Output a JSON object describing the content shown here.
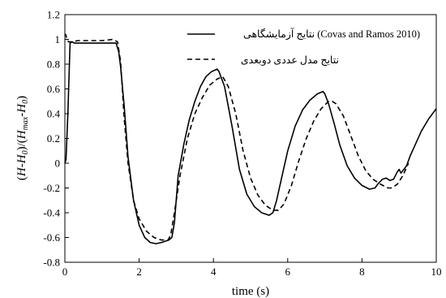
{
  "chart_data": {
    "type": "line",
    "title": "",
    "xlabel": "time (s)",
    "ylabel": "(H-H0)/(Hmax-H0)",
    "ylabel_parts": {
      "open": "(",
      "h": "H",
      "minus1": "-",
      "h0": "H",
      "sub0": "0",
      "close_div": ")/(",
      "hmax": "H",
      "submax": "max",
      "minus2": "-",
      "h0b": "H",
      "sub0b": "0",
      "close": ")"
    },
    "xlim": [
      0,
      10
    ],
    "ylim": [
      -0.8,
      1.2
    ],
    "xticks": [
      "0",
      "2",
      "4",
      "6",
      "8",
      "10"
    ],
    "yticks": [
      "1.2",
      "1",
      "0.8",
      "0.6",
      "0.4",
      "0.2",
      "0",
      "-0.2",
      "-0.4",
      "-0.6",
      "-0.8"
    ],
    "grid": false,
    "legend_position": "top-right",
    "series": [
      {
        "name": "نتایج آزمایشگاهی (Covas and Ramos 2010)",
        "style": "solid",
        "color": "#000000",
        "x": [
          0,
          0.03,
          0.08,
          0.14,
          0.2,
          0.25,
          0.3,
          0.5,
          1.0,
          1.38,
          1.45,
          1.5,
          1.6,
          1.7,
          1.85,
          2.0,
          2.15,
          2.3,
          2.45,
          2.6,
          2.8,
          2.88,
          2.95,
          3.05,
          3.2,
          3.35,
          3.5,
          3.65,
          3.8,
          3.95,
          4.1,
          4.15,
          4.3,
          4.5,
          4.7,
          4.9,
          5.1,
          5.3,
          5.5,
          5.6,
          5.7,
          5.85,
          6.0,
          6.2,
          6.4,
          6.6,
          6.8,
          6.95,
          7.0,
          7.1,
          7.25,
          7.4,
          7.6,
          7.8,
          8.0,
          8.2,
          8.35,
          8.45,
          8.55,
          8.65,
          8.75,
          8.85,
          8.95,
          9.0,
          9.05,
          9.1,
          9.2,
          9.3,
          9.45,
          9.6,
          9.8,
          10.0
        ],
        "y": [
          0.0,
          0.03,
          0.4,
          0.97,
          0.98,
          0.97,
          0.97,
          0.97,
          0.97,
          0.97,
          0.9,
          0.78,
          0.45,
          0.05,
          -0.3,
          -0.5,
          -0.6,
          -0.64,
          -0.65,
          -0.64,
          -0.62,
          -0.6,
          -0.48,
          -0.1,
          0.15,
          0.35,
          0.5,
          0.62,
          0.7,
          0.74,
          0.76,
          0.74,
          0.62,
          0.3,
          -0.05,
          -0.25,
          -0.35,
          -0.4,
          -0.42,
          -0.4,
          -0.3,
          -0.1,
          0.1,
          0.3,
          0.43,
          0.51,
          0.56,
          0.58,
          0.56,
          0.48,
          0.32,
          0.15,
          -0.02,
          -0.12,
          -0.18,
          -0.21,
          -0.2,
          -0.16,
          -0.13,
          -0.12,
          -0.14,
          -0.13,
          -0.07,
          -0.05,
          -0.08,
          -0.06,
          -0.02,
          0.06,
          0.16,
          0.26,
          0.36,
          0.44
        ]
      },
      {
        "name": "نتایج مدل عددی دوبعدی",
        "style": "dashed",
        "color": "#000000",
        "x": [
          0,
          0.02,
          0.06,
          0.1,
          0.2,
          0.35,
          0.6,
          1.0,
          1.3,
          1.42,
          1.5,
          1.6,
          1.7,
          1.85,
          2.0,
          2.2,
          2.4,
          2.6,
          2.78,
          2.85,
          2.95,
          3.1,
          3.3,
          3.5,
          3.7,
          3.9,
          4.1,
          4.25,
          4.4,
          4.6,
          4.8,
          5.0,
          5.2,
          5.4,
          5.6,
          5.75,
          5.9,
          6.1,
          6.3,
          6.5,
          6.7,
          6.9,
          7.1,
          7.2,
          7.3,
          7.5,
          7.7,
          7.9,
          8.1,
          8.3,
          8.5,
          8.7,
          8.8,
          8.95,
          9.1,
          9.25
        ],
        "y": [
          1.03,
          1.04,
          1.0,
          0.98,
          0.98,
          0.99,
          0.99,
          0.99,
          1.0,
          0.98,
          0.82,
          0.35,
          0.0,
          -0.3,
          -0.45,
          -0.55,
          -0.6,
          -0.62,
          -0.62,
          -0.58,
          -0.4,
          -0.1,
          0.2,
          0.4,
          0.53,
          0.63,
          0.68,
          0.7,
          0.62,
          0.4,
          0.1,
          -0.12,
          -0.26,
          -0.34,
          -0.38,
          -0.38,
          -0.33,
          -0.18,
          0.02,
          0.2,
          0.34,
          0.44,
          0.5,
          0.5,
          0.48,
          0.38,
          0.22,
          0.06,
          -0.06,
          -0.13,
          -0.17,
          -0.2,
          -0.2,
          -0.17,
          -0.1,
          0.0
        ]
      }
    ]
  }
}
